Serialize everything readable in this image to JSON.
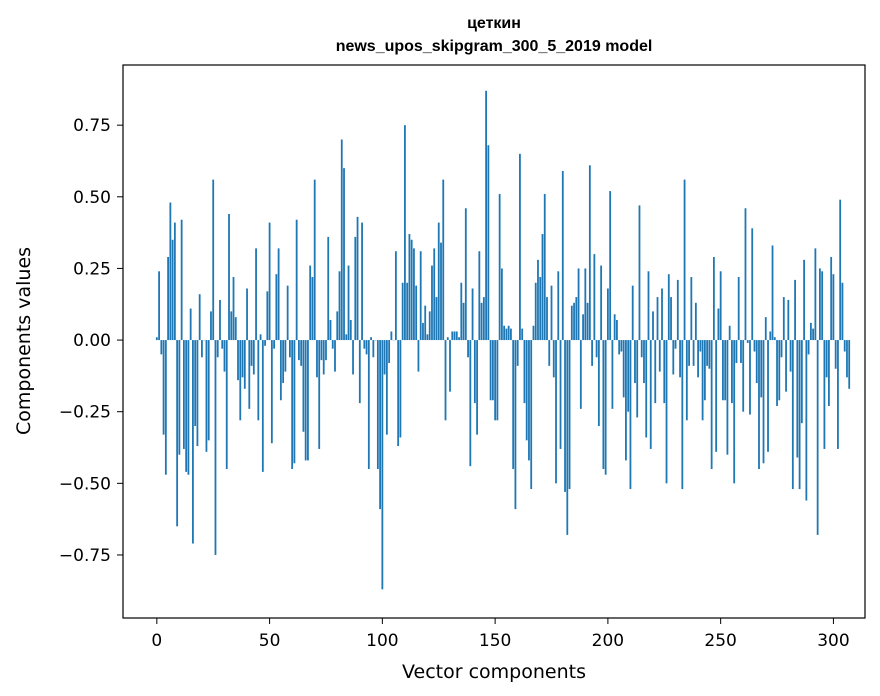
{
  "chart_data": {
    "type": "bar",
    "title": "цеткин",
    "subtitle": "news_upos_skipgram_300_5_2019 model",
    "xlabel": "Vector components",
    "ylabel": "Components values",
    "xlim": [
      -15,
      314
    ],
    "ylim": [
      -0.97,
      0.96
    ],
    "grid": false,
    "x_ticks": [
      0,
      50,
      100,
      150,
      200,
      250,
      300
    ],
    "x_tick_labels": [
      "0",
      "50",
      "100",
      "150",
      "200",
      "250",
      "300"
    ],
    "y_ticks": [
      0.75,
      0.5,
      0.25,
      0.0,
      -0.25,
      -0.5,
      -0.75
    ],
    "y_tick_labels": [
      "0.75",
      "0.50",
      "0.25",
      "0.00",
      "−0.25",
      "−0.50",
      "−0.75"
    ],
    "bar_color": "#1f77b4",
    "values": [
      0.01,
      0.24,
      -0.05,
      -0.33,
      -0.47,
      0.29,
      0.48,
      0.35,
      0.41,
      -0.65,
      -0.4,
      0.42,
      -0.38,
      -0.46,
      -0.47,
      0.11,
      -0.71,
      -0.3,
      -0.37,
      0.16,
      -0.06,
      0.0,
      -0.39,
      -0.35,
      0.1,
      0.56,
      -0.75,
      -0.06,
      0.14,
      -0.03,
      -0.11,
      -0.45,
      0.44,
      0.1,
      0.22,
      0.08,
      -0.14,
      -0.28,
      -0.13,
      -0.17,
      0.18,
      -0.24,
      -0.09,
      -0.12,
      0.32,
      -0.28,
      0.02,
      -0.46,
      -0.02,
      0.17,
      0.41,
      -0.36,
      -0.03,
      0.23,
      0.32,
      -0.21,
      -0.15,
      -0.11,
      0.19,
      -0.06,
      -0.45,
      -0.43,
      0.42,
      -0.07,
      -0.09,
      -0.32,
      -0.42,
      -0.42,
      0.26,
      0.22,
      0.56,
      -0.13,
      -0.38,
      -0.07,
      -0.12,
      -0.07,
      0.36,
      0.07,
      -0.03,
      -0.11,
      0.1,
      0.24,
      0.7,
      0.6,
      0.02,
      0.26,
      0.07,
      -0.12,
      0.36,
      0.43,
      -0.22,
      0.41,
      -0.03,
      -0.05,
      -0.45,
      0.01,
      -0.06,
      0.0,
      -0.45,
      -0.59,
      -0.87,
      -0.12,
      -0.33,
      -0.08,
      0.03,
      0.0,
      0.31,
      -0.37,
      -0.34,
      0.2,
      0.75,
      0.2,
      0.37,
      0.35,
      0.32,
      0.19,
      -0.11,
      0.31,
      0.06,
      0.12,
      0.02,
      0.1,
      0.26,
      0.32,
      0.15,
      0.41,
      0.34,
      0.56,
      -0.28,
      0.01,
      -0.18,
      0.03,
      0.03,
      0.03,
      0.01,
      0.2,
      0.13,
      0.46,
      -0.06,
      -0.44,
      0.18,
      -0.22,
      -0.33,
      0.31,
      0.13,
      0.15,
      0.87,
      0.68,
      -0.21,
      -0.21,
      -0.28,
      -0.28,
      0.51,
      0.25,
      0.05,
      0.04,
      0.05,
      0.04,
      -0.45,
      -0.59,
      -0.09,
      0.65,
      0.04,
      -0.22,
      -0.35,
      -0.42,
      -0.52,
      0.05,
      0.2,
      0.28,
      0.22,
      0.37,
      0.51,
      0.15,
      -0.09,
      0.19,
      -0.13,
      -0.5,
      0.24,
      -0.38,
      0.59,
      -0.53,
      -0.68,
      -0.52,
      0.12,
      0.13,
      0.15,
      0.25,
      -0.24,
      0.09,
      0.25,
      0.13,
      0.61,
      -0.09,
      0.3,
      -0.06,
      -0.3,
      0.26,
      -0.45,
      -0.47,
      0.18,
      0.52,
      -0.24,
      0.09,
      0.07,
      -0.05,
      -0.04,
      -0.2,
      -0.42,
      -0.25,
      -0.52,
      0.19,
      -0.15,
      -0.27,
      0.47,
      -0.06,
      -0.15,
      -0.34,
      0.24,
      -0.38,
      0.1,
      -0.22,
      0.15,
      -0.11,
      0.18,
      -0.22,
      -0.5,
      0.23,
      0.15,
      -0.12,
      -0.03,
      0.21,
      -0.13,
      -0.52,
      0.56,
      -0.28,
      -0.09,
      0.22,
      -0.09,
      0.13,
      -0.13,
      -0.04,
      -0.28,
      -0.21,
      -0.09,
      -0.1,
      -0.45,
      0.29,
      -0.39,
      0.11,
      0.24,
      -0.21,
      -0.21,
      -0.4,
      0.05,
      -0.22,
      -0.5,
      -0.08,
      0.22,
      -0.08,
      -0.25,
      0.46,
      -0.01,
      -0.26,
      0.39,
      -0.04,
      -0.15,
      -0.45,
      -0.2,
      -0.43,
      0.08,
      -0.39,
      0.03,
      0.33,
      0.01,
      -0.23,
      -0.21,
      -0.06,
      0.15,
      -0.18,
      0.14,
      -0.11,
      -0.52,
      0.21,
      -0.41,
      -0.52,
      -0.29,
      0.28,
      -0.56,
      -0.05,
      0.06,
      0.04,
      0.32,
      -0.68,
      0.25,
      0.24,
      -0.38,
      -0.13,
      -0.23,
      0.29,
      0.23,
      -0.1,
      -0.38,
      0.49,
      0.2,
      -0.04,
      -0.13,
      -0.17
    ]
  }
}
